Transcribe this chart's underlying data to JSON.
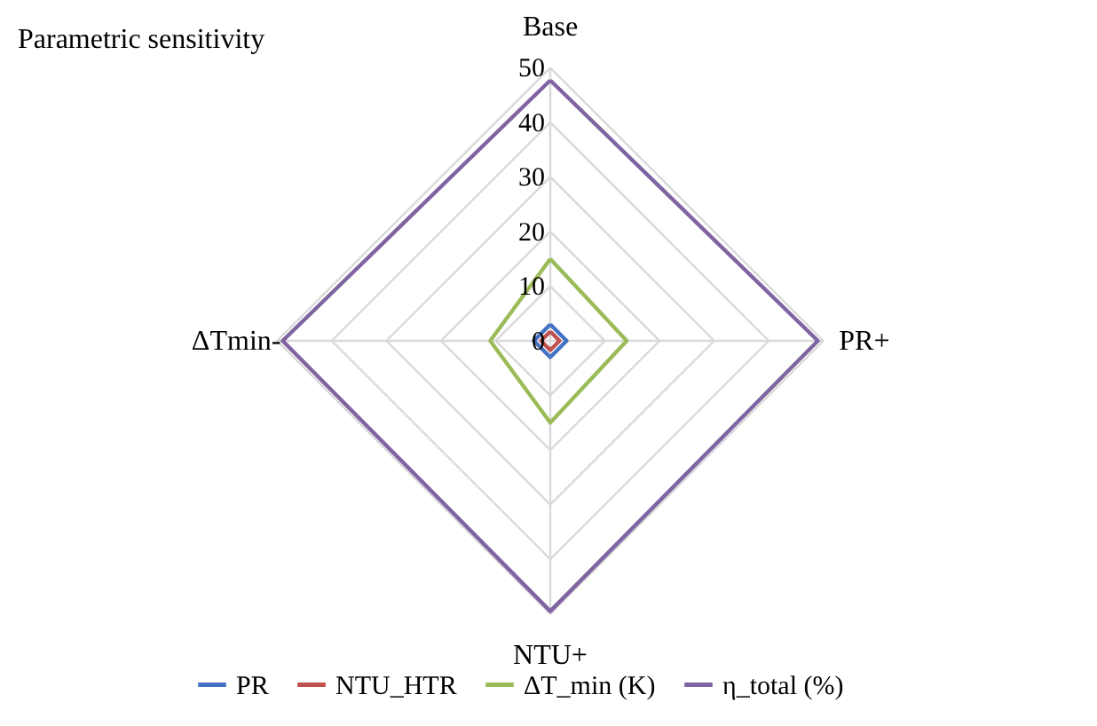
{
  "chart_data": {
    "type": "radar",
    "title": "Parametric sensitivity",
    "categories": [
      "Base",
      "PR+",
      "NTU+",
      "ΔTmin-"
    ],
    "series": [
      {
        "name": "PR",
        "color": "#4472c4",
        "values": [
          3,
          3,
          3,
          3
        ]
      },
      {
        "name": "NTU_HTR",
        "color": "#c0504d",
        "values": [
          1.7,
          1.7,
          1.7,
          1.7
        ]
      },
      {
        "name": "ΔT_min (K)",
        "color": "#9bbb59",
        "values": [
          15,
          14,
          15,
          11
        ]
      },
      {
        "name": "η_total (%)",
        "color": "#8064a2",
        "values": [
          47.7,
          49,
          49.5,
          49
        ]
      }
    ],
    "ylim": [
      0,
      50
    ],
    "yticks": [
      0,
      10,
      20,
      30,
      40,
      50
    ],
    "grid": true,
    "legend": "bottom"
  }
}
